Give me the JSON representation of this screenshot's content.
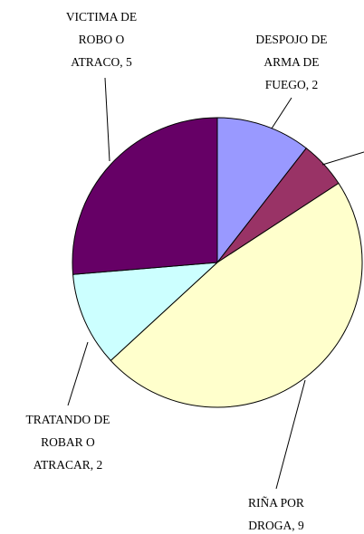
{
  "chart_data": {
    "type": "pie",
    "labels": [
      [
        "DESPOJO DE",
        "ARMA DE",
        "FUEGO, 2"
      ],
      null,
      [
        "RIÑA POR",
        "DROGA, 9"
      ],
      [
        "TRATANDO DE",
        "ROBAR O",
        "ATRACAR, 2"
      ],
      [
        "VICTIMA DE",
        "ROBO O",
        "ATRACO, 5"
      ]
    ],
    "values": [
      2,
      1,
      9,
      2,
      5
    ],
    "colors": [
      "#9999ff",
      "#993366",
      "#ffffcc",
      "#ccffff",
      "#660066"
    ]
  }
}
